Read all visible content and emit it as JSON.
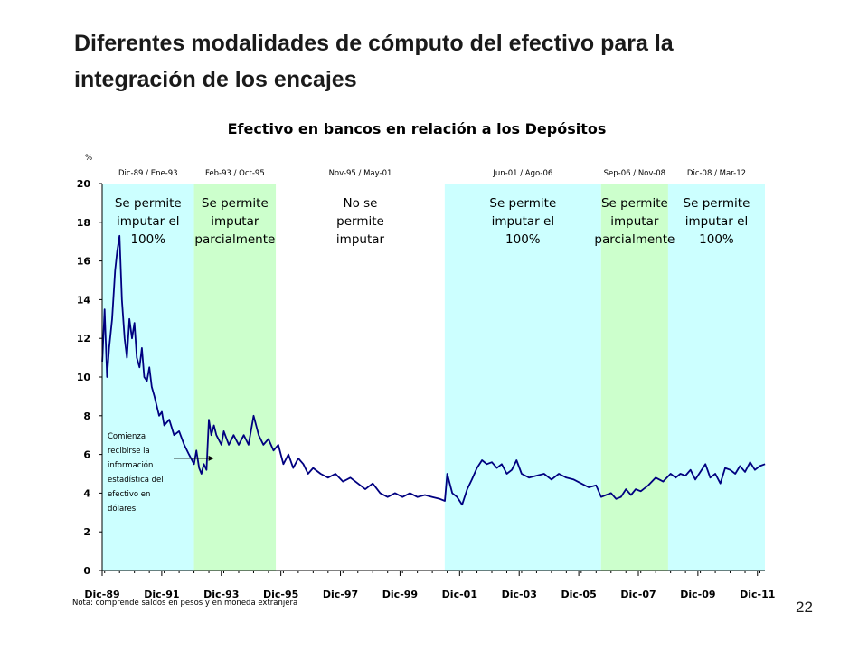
{
  "slide": {
    "title_line1": "Diferentes modalidades de cómputo del efectivo para la",
    "title_line2": "integración de los encajes",
    "page_number": "22"
  },
  "colors": {
    "full_imputation": "#ccffff",
    "partial_imputation": "#ccffcc",
    "no_imputation": "#ffffff",
    "series_line": "#000080"
  },
  "chart_data": {
    "type": "line",
    "title": "Efectivo en bancos en relación a los Depósitos",
    "ylabel": "%",
    "ylim": [
      0,
      20
    ],
    "yticks": [
      0,
      2,
      4,
      6,
      8,
      10,
      12,
      14,
      16,
      18,
      20
    ],
    "xlim": [
      1989.917,
      2012.167
    ],
    "xticks": [
      {
        "label": "Dic-89",
        "x": 1989.917
      },
      {
        "label": "Dic-91",
        "x": 1991.917
      },
      {
        "label": "Dic-93",
        "x": 1993.917
      },
      {
        "label": "Dic-95",
        "x": 1995.917
      },
      {
        "label": "Dic-97",
        "x": 1997.917
      },
      {
        "label": "Dic-99",
        "x": 1999.917
      },
      {
        "label": "Dic-01",
        "x": 2001.917
      },
      {
        "label": "Dic-03",
        "x": 2003.917
      },
      {
        "label": "Dic-05",
        "x": 2005.917
      },
      {
        "label": "Dic-07",
        "x": 2007.917
      },
      {
        "label": "Dic-09",
        "x": 2009.917
      },
      {
        "label": "Dic-11",
        "x": 2011.917
      }
    ],
    "periods": [
      {
        "range": "Dic-89 / Ene-93",
        "start": 1989.917,
        "end": 1993.0,
        "mode": "full",
        "text": [
          "Se permite",
          "imputar el",
          "100%"
        ]
      },
      {
        "range": "Feb-93 / Oct-95",
        "start": 1993.0,
        "end": 1995.75,
        "mode": "partial",
        "text": [
          "Se permite",
          "imputar",
          "parcialmente"
        ]
      },
      {
        "range": "Nov-95 / May-01",
        "start": 1995.75,
        "end": 2001.417,
        "mode": "none",
        "text": [
          "No se",
          "permite",
          "imputar"
        ]
      },
      {
        "range": "Jun-01 / Ago-06",
        "start": 2001.417,
        "end": 2006.667,
        "mode": "full",
        "text": [
          "Se permite",
          "imputar el",
          "100%"
        ]
      },
      {
        "range": "Sep-06 / Nov-08",
        "start": 2006.667,
        "end": 2008.917,
        "mode": "partial",
        "text": [
          "Se permite",
          "imputar",
          "parcialmente"
        ]
      },
      {
        "range": "Dic-08 / Mar-12",
        "start": 2008.917,
        "end": 2012.167,
        "mode": "full",
        "text": [
          "Se permite",
          "imputar el",
          "100%"
        ]
      }
    ],
    "annotation": {
      "lines": [
        "Comienza",
        "recibirse la",
        "información",
        "estadística del",
        "efectivo en",
        "dólares"
      ],
      "x": 1993.67,
      "y": 5.8
    },
    "note": "Nota: comprende saldos en pesos y en moneda extranjera",
    "series": [
      {
        "x": [
          1989.92,
          1990.0,
          1990.08,
          1990.15,
          1990.25,
          1990.35,
          1990.42,
          1990.5,
          1990.58,
          1990.67,
          1990.75,
          1990.83,
          1990.92,
          1991.0,
          1991.08,
          1991.17,
          1991.25,
          1991.33,
          1991.42,
          1991.5,
          1991.58,
          1991.67,
          1991.75,
          1991.83,
          1991.92,
          1992.0,
          1992.17,
          1992.33,
          1992.5,
          1992.67,
          1992.83,
          1993.0,
          1993.08,
          1993.17,
          1993.25,
          1993.33,
          1993.42,
          1993.5,
          1993.58,
          1993.67,
          1993.75,
          1993.92,
          1994.0,
          1994.17,
          1994.33,
          1994.5,
          1994.67,
          1994.83,
          1995.0,
          1995.17,
          1995.33,
          1995.5,
          1995.67,
          1995.83,
          1996.0,
          1996.17,
          1996.33,
          1996.5,
          1996.67,
          1996.83,
          1997.0,
          1997.25,
          1997.5,
          1997.75,
          1998.0,
          1998.25,
          1998.5,
          1998.75,
          1999.0,
          1999.25,
          1999.5,
          1999.75,
          2000.0,
          2000.25,
          2000.5,
          2000.75,
          2001.0,
          2001.25,
          2001.42,
          2001.5,
          2001.67,
          2001.83,
          2002.0,
          2002.17,
          2002.33,
          2002.5,
          2002.67,
          2002.83,
          2003.0,
          2003.17,
          2003.33,
          2003.5,
          2003.67,
          2003.83,
          2004.0,
          2004.25,
          2004.5,
          2004.75,
          2005.0,
          2005.25,
          2005.5,
          2005.75,
          2006.0,
          2006.25,
          2006.5,
          2006.67,
          2006.83,
          2007.0,
          2007.17,
          2007.33,
          2007.5,
          2007.67,
          2007.83,
          2008.0,
          2008.25,
          2008.5,
          2008.75,
          2009.0,
          2009.17,
          2009.33,
          2009.5,
          2009.67,
          2009.83,
          2010.0,
          2010.17,
          2010.33,
          2010.5,
          2010.67,
          2010.83,
          2011.0,
          2011.17,
          2011.33,
          2011.5,
          2011.67,
          2011.83,
          2012.0,
          2012.17
        ],
        "y": [
          10.8,
          13.5,
          10.0,
          11.5,
          13.0,
          15.5,
          16.5,
          17.3,
          14.0,
          12.0,
          11.0,
          13.0,
          12.0,
          12.8,
          11.0,
          10.5,
          11.5,
          10.0,
          9.8,
          10.5,
          9.5,
          9.0,
          8.5,
          8.0,
          8.2,
          7.5,
          7.8,
          7.0,
          7.2,
          6.5,
          6.0,
          5.5,
          6.2,
          5.3,
          5.0,
          5.5,
          5.2,
          7.8,
          7.0,
          7.5,
          7.0,
          6.5,
          7.2,
          6.5,
          7.0,
          6.5,
          7.0,
          6.5,
          8.0,
          7.0,
          6.5,
          6.8,
          6.2,
          6.5,
          5.5,
          6.0,
          5.3,
          5.8,
          5.5,
          5.0,
          5.3,
          5.0,
          4.8,
          5.0,
          4.6,
          4.8,
          4.5,
          4.2,
          4.5,
          4.0,
          3.8,
          4.0,
          3.8,
          4.0,
          3.8,
          3.9,
          3.8,
          3.7,
          3.6,
          5.0,
          4.0,
          3.8,
          3.4,
          4.2,
          4.7,
          5.3,
          5.7,
          5.5,
          5.6,
          5.3,
          5.5,
          5.0,
          5.2,
          5.7,
          5.0,
          4.8,
          4.9,
          5.0,
          4.7,
          5.0,
          4.8,
          4.7,
          4.5,
          4.3,
          4.4,
          3.8,
          3.9,
          4.0,
          3.7,
          3.8,
          4.2,
          3.9,
          4.2,
          4.1,
          4.4,
          4.8,
          4.6,
          5.0,
          4.8,
          5.0,
          4.9,
          5.2,
          4.7,
          5.1,
          5.5,
          4.8,
          5.0,
          4.5,
          5.3,
          5.2,
          5.0,
          5.4,
          5.1,
          5.6,
          5.2,
          5.4,
          5.5
        ]
      }
    ]
  }
}
